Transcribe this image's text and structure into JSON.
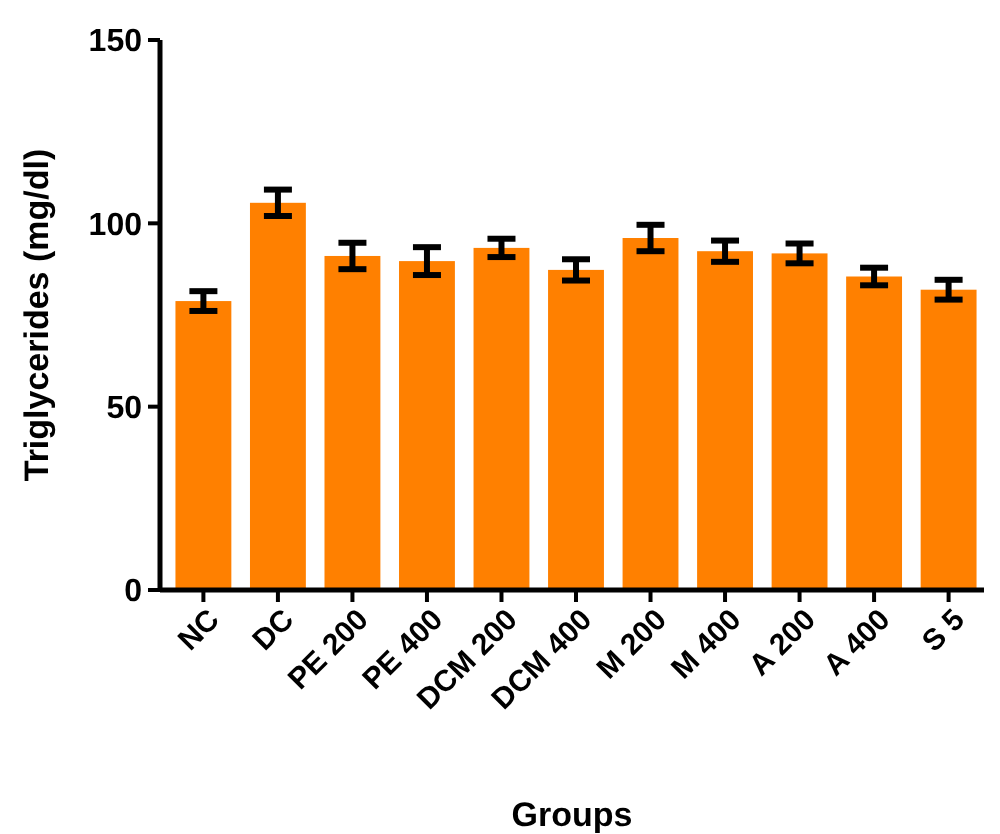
{
  "chart_data": {
    "type": "bar",
    "xlabel": "Groups",
    "ylabel": "Triglycerides (mg/dl)",
    "categories": [
      "NC",
      "DC",
      "PE 200",
      "PE 400",
      "DCM 200",
      "DCM 400",
      "M 200",
      "M 400",
      "A 200",
      "A 400",
      "S 5"
    ],
    "values": [
      78.8,
      105.6,
      91.1,
      89.7,
      93.3,
      87.3,
      96,
      92.4,
      91.8,
      85.5,
      81.9
    ],
    "errors": [
      2.7,
      3.6,
      3.6,
      3.8,
      2.5,
      2.9,
      3.6,
      2.9,
      2.7,
      2.4,
      2.7
    ],
    "color": "#ff8000",
    "ylim": [
      0,
      150
    ],
    "yticks": [
      0,
      50,
      100,
      150
    ]
  }
}
